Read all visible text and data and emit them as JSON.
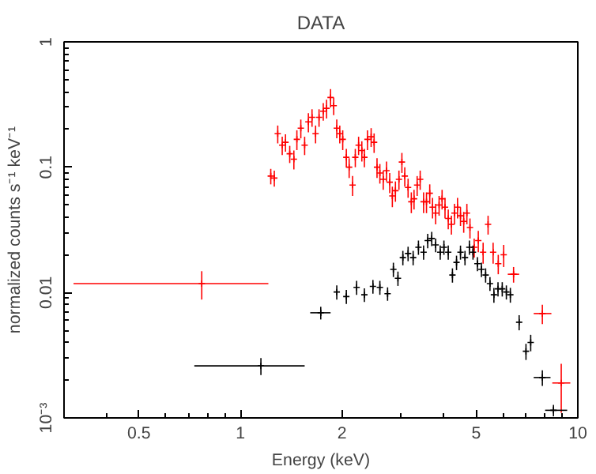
{
  "chart_data": {
    "type": "scatter",
    "title": "DATA",
    "xlabel": "Energy (keV)",
    "ylabel": "normalized counts s⁻¹ keV⁻¹",
    "log": "xy",
    "grid": false,
    "marker": "cross",
    "xlim": [
      0.3,
      10
    ],
    "xticks": [
      0.5,
      1,
      2,
      5,
      10
    ],
    "ylim": [
      0.001,
      1
    ],
    "yticks": [
      {
        "value": 0.001,
        "label": "10⁻³"
      },
      0.01,
      0.1,
      1
    ],
    "series": [
      {
        "color": "#ff0000",
        "x": [
          0.768,
          1.23,
          1.26,
          1.29,
          1.33,
          1.36,
          1.4,
          1.44,
          1.47,
          1.51,
          1.55,
          1.59,
          1.63,
          1.67,
          1.71,
          1.76,
          1.8,
          1.85,
          1.89,
          1.93,
          1.97,
          2.01,
          2.06,
          2.1,
          2.15,
          2.19,
          2.24,
          2.29,
          2.33,
          2.38,
          2.44,
          2.49,
          2.54,
          2.59,
          2.65,
          2.71,
          2.77,
          2.82,
          2.88,
          2.95,
          3.01,
          3.07,
          3.14,
          3.21,
          3.27,
          3.34,
          3.41,
          3.49,
          3.56,
          3.64,
          3.71,
          3.79,
          3.88,
          3.96,
          4.04,
          4.13,
          4.22,
          4.31,
          4.4,
          4.49,
          4.59,
          4.69,
          4.79,
          4.93,
          5.07,
          5.24,
          5.42,
          5.61,
          5.81,
          6.03,
          6.45,
          7.85,
          8.93
        ],
        "values": [
          0.0118,
          0.085,
          0.082,
          0.185,
          0.15,
          0.158,
          0.128,
          0.116,
          0.167,
          0.205,
          0.15,
          0.23,
          0.25,
          0.185,
          0.25,
          0.28,
          0.295,
          0.36,
          0.31,
          0.205,
          0.185,
          0.167,
          0.12,
          0.1,
          0.072,
          0.12,
          0.15,
          0.136,
          0.12,
          0.167,
          0.175,
          0.158,
          0.1,
          0.09,
          0.08,
          0.094,
          0.076,
          0.059,
          0.065,
          0.08,
          0.11,
          0.085,
          0.069,
          0.053,
          0.056,
          0.072,
          0.08,
          0.053,
          0.053,
          0.062,
          0.048,
          0.043,
          0.05,
          0.056,
          0.048,
          0.039,
          0.035,
          0.043,
          0.048,
          0.041,
          0.037,
          0.043,
          0.033,
          0.023,
          0.026,
          0.021,
          0.035,
          0.021,
          0.017,
          0.02,
          0.014,
          0.0068,
          0.0019
        ],
        "errors": [
          0.003,
          0.012,
          0.012,
          0.03,
          0.025,
          0.025,
          0.02,
          0.02,
          0.03,
          0.035,
          0.025,
          0.04,
          0.04,
          0.03,
          0.04,
          0.045,
          0.05,
          0.06,
          0.05,
          0.035,
          0.03,
          0.03,
          0.02,
          0.018,
          0.013,
          0.02,
          0.025,
          0.025,
          0.02,
          0.03,
          0.03,
          0.028,
          0.018,
          0.016,
          0.014,
          0.017,
          0.014,
          0.011,
          0.012,
          0.014,
          0.02,
          0.015,
          0.012,
          0.01,
          0.01,
          0.013,
          0.014,
          0.01,
          0.01,
          0.011,
          0.009,
          0.008,
          0.009,
          0.01,
          0.009,
          0.007,
          0.006,
          0.008,
          0.009,
          0.007,
          0.007,
          0.008,
          0.006,
          0.004,
          0.005,
          0.004,
          0.006,
          0.004,
          0.003,
          0.004,
          0.002,
          0.0012,
          0.0008
        ],
        "xerrors": [
          [
            0.32,
            1.21
          ],
          null,
          null,
          null,
          null,
          null,
          null,
          null,
          null,
          null,
          null,
          null,
          null,
          null,
          null,
          null,
          null,
          null,
          null,
          null,
          null,
          null,
          null,
          null,
          null,
          null,
          null,
          null,
          null,
          null,
          null,
          null,
          null,
          null,
          null,
          null,
          null,
          null,
          null,
          null,
          null,
          null,
          null,
          null,
          null,
          null,
          null,
          null,
          null,
          null,
          null,
          null,
          null,
          null,
          null,
          null,
          null,
          null,
          null,
          null,
          null,
          null,
          null,
          null,
          null,
          null,
          null,
          null,
          null,
          null,
          [
            6.2,
            6.7
          ],
          [
            7.4,
            8.35
          ],
          [
            8.4,
            9.5
          ]
        ]
      },
      {
        "color": "#000000",
        "x": [
          1.15,
          1.73,
          1.93,
          2.06,
          2.21,
          2.33,
          2.47,
          2.59,
          2.73,
          2.84,
          2.93,
          3.03,
          3.14,
          3.25,
          3.37,
          3.49,
          3.59,
          3.69,
          3.79,
          3.91,
          4.01,
          4.13,
          4.25,
          4.37,
          4.49,
          4.63,
          4.77,
          4.89,
          5.04,
          5.18,
          5.33,
          5.49,
          5.64,
          5.8,
          5.97,
          6.14,
          6.31,
          6.7,
          7.02,
          7.25,
          7.85,
          8.47
        ],
        "values": [
          0.0026,
          0.0069,
          0.0101,
          0.0093,
          0.011,
          0.0096,
          0.0112,
          0.011,
          0.0098,
          0.0153,
          0.013,
          0.019,
          0.0205,
          0.019,
          0.023,
          0.021,
          0.026,
          0.027,
          0.024,
          0.021,
          0.023,
          0.021,
          0.0138,
          0.0174,
          0.021,
          0.019,
          0.023,
          0.021,
          0.017,
          0.0153,
          0.0138,
          0.0118,
          0.0096,
          0.0107,
          0.0107,
          0.0101,
          0.0096,
          0.0058,
          0.0034,
          0.004,
          0.0021,
          0.00115
        ],
        "errors": [
          0.0004,
          0.0008,
          0.0013,
          0.0012,
          0.0014,
          0.0012,
          0.0014,
          0.0014,
          0.0012,
          0.002,
          0.0017,
          0.0025,
          0.0027,
          0.0025,
          0.003,
          0.0027,
          0.0034,
          0.0035,
          0.003,
          0.0027,
          0.003,
          0.0027,
          0.0018,
          0.0023,
          0.0027,
          0.0025,
          0.003,
          0.0027,
          0.0022,
          0.002,
          0.0018,
          0.0015,
          0.0013,
          0.0014,
          0.0014,
          0.0013,
          0.0013,
          0.0008,
          0.0005,
          0.0006,
          0.0003,
          0.00012
        ],
        "xerrors": [
          [
            0.73,
            1.55
          ],
          [
            1.61,
            1.85
          ],
          null,
          null,
          null,
          null,
          null,
          null,
          null,
          null,
          null,
          null,
          null,
          null,
          null,
          null,
          null,
          null,
          null,
          null,
          null,
          null,
          null,
          null,
          null,
          null,
          null,
          null,
          null,
          null,
          null,
          null,
          null,
          null,
          null,
          null,
          null,
          null,
          null,
          null,
          [
            7.4,
            8.3
          ],
          [
            8.0,
            9.3
          ]
        ]
      }
    ]
  }
}
